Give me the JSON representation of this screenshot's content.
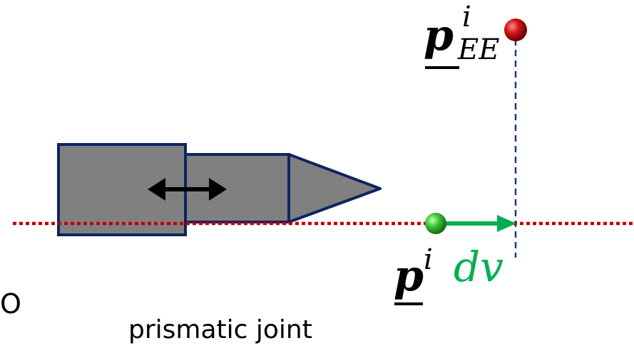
{
  "labels": {
    "p_ee_main": "p",
    "p_ee_super": "i",
    "p_ee_sub": "EE",
    "p_main": "p",
    "p_super": "i",
    "dv": "dv",
    "origin": "O",
    "caption": "prismatic joint"
  },
  "colors": {
    "joint_fill": "#808080",
    "joint_stroke": "#0d2560",
    "axis_dotted": "#c00000",
    "vector_green": "#00b050",
    "dashed_line": "#1f3a6e",
    "point_red": "#c00000",
    "point_green": "#22c022",
    "arrow_black": "#000000"
  }
}
